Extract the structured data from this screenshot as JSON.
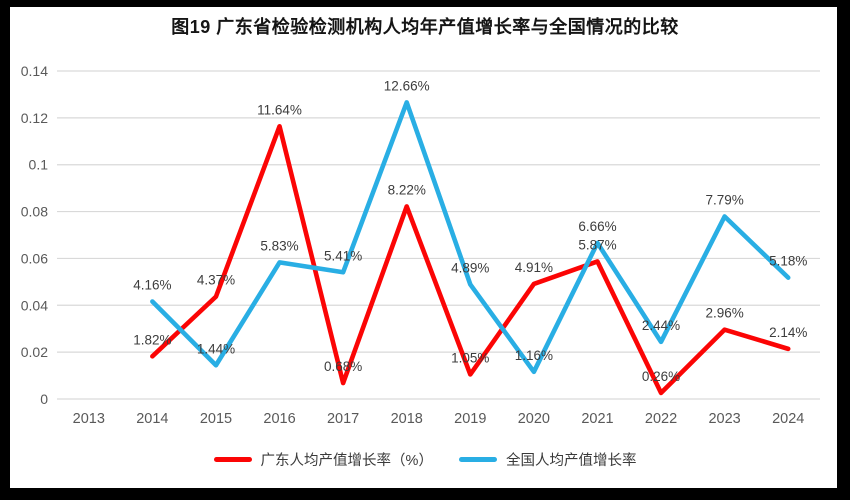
{
  "title": "图19  广东省检验检测机构人均年产值增长率与全国情况的比较",
  "chart_data": {
    "type": "line",
    "title": "图19  广东省检验检测机构人均年产值增长率与全国情况的比较",
    "categories": [
      "2013",
      "2014",
      "2015",
      "2016",
      "2017",
      "2018",
      "2019",
      "2020",
      "2021",
      "2022",
      "2023",
      "2024"
    ],
    "series": [
      {
        "name": "广东人均产值增长率（%）",
        "color": "#fb0505",
        "values": [
          null,
          0.0182,
          0.0437,
          0.1164,
          0.0068,
          0.0822,
          0.0105,
          0.0491,
          0.0587,
          0.0026,
          0.0296,
          0.0214
        ],
        "point_labels": [
          null,
          "1.82%",
          "4.37%",
          "11.64%",
          "0.68%",
          "8.22%",
          "1.05%",
          "4.91%",
          "5.87%",
          "0.26%",
          "2.96%",
          "2.14%"
        ]
      },
      {
        "name": "全国人均产值增长率",
        "color": "#29aee4",
        "values": [
          null,
          0.0416,
          0.0144,
          0.0583,
          0.0541,
          0.1266,
          0.0489,
          0.0116,
          0.0666,
          0.0244,
          0.0779,
          0.0518
        ],
        "point_labels": [
          null,
          "4.16%",
          "1.44%",
          "5.83%",
          "5.41%",
          "12.66%",
          "4.89%",
          "1.16%",
          "6.66%",
          "2.44%",
          "7.79%",
          "5.18%"
        ]
      }
    ],
    "xlabel": "",
    "ylabel": "",
    "ylim": [
      0,
      0.14
    ],
    "y_ticks": [
      0,
      0.02,
      0.04,
      0.06,
      0.08,
      0.1,
      0.12,
      0.14
    ],
    "y_tick_labels": [
      "0",
      "0.02",
      "0.04",
      "0.06",
      "0.08",
      "0.1",
      "0.12",
      "0.14"
    ],
    "grid": true,
    "gridline_color": "#d9d9d9",
    "tick_label_color": "#595959",
    "data_label_color": "#3d3d3d",
    "legend_position": "bottom"
  }
}
